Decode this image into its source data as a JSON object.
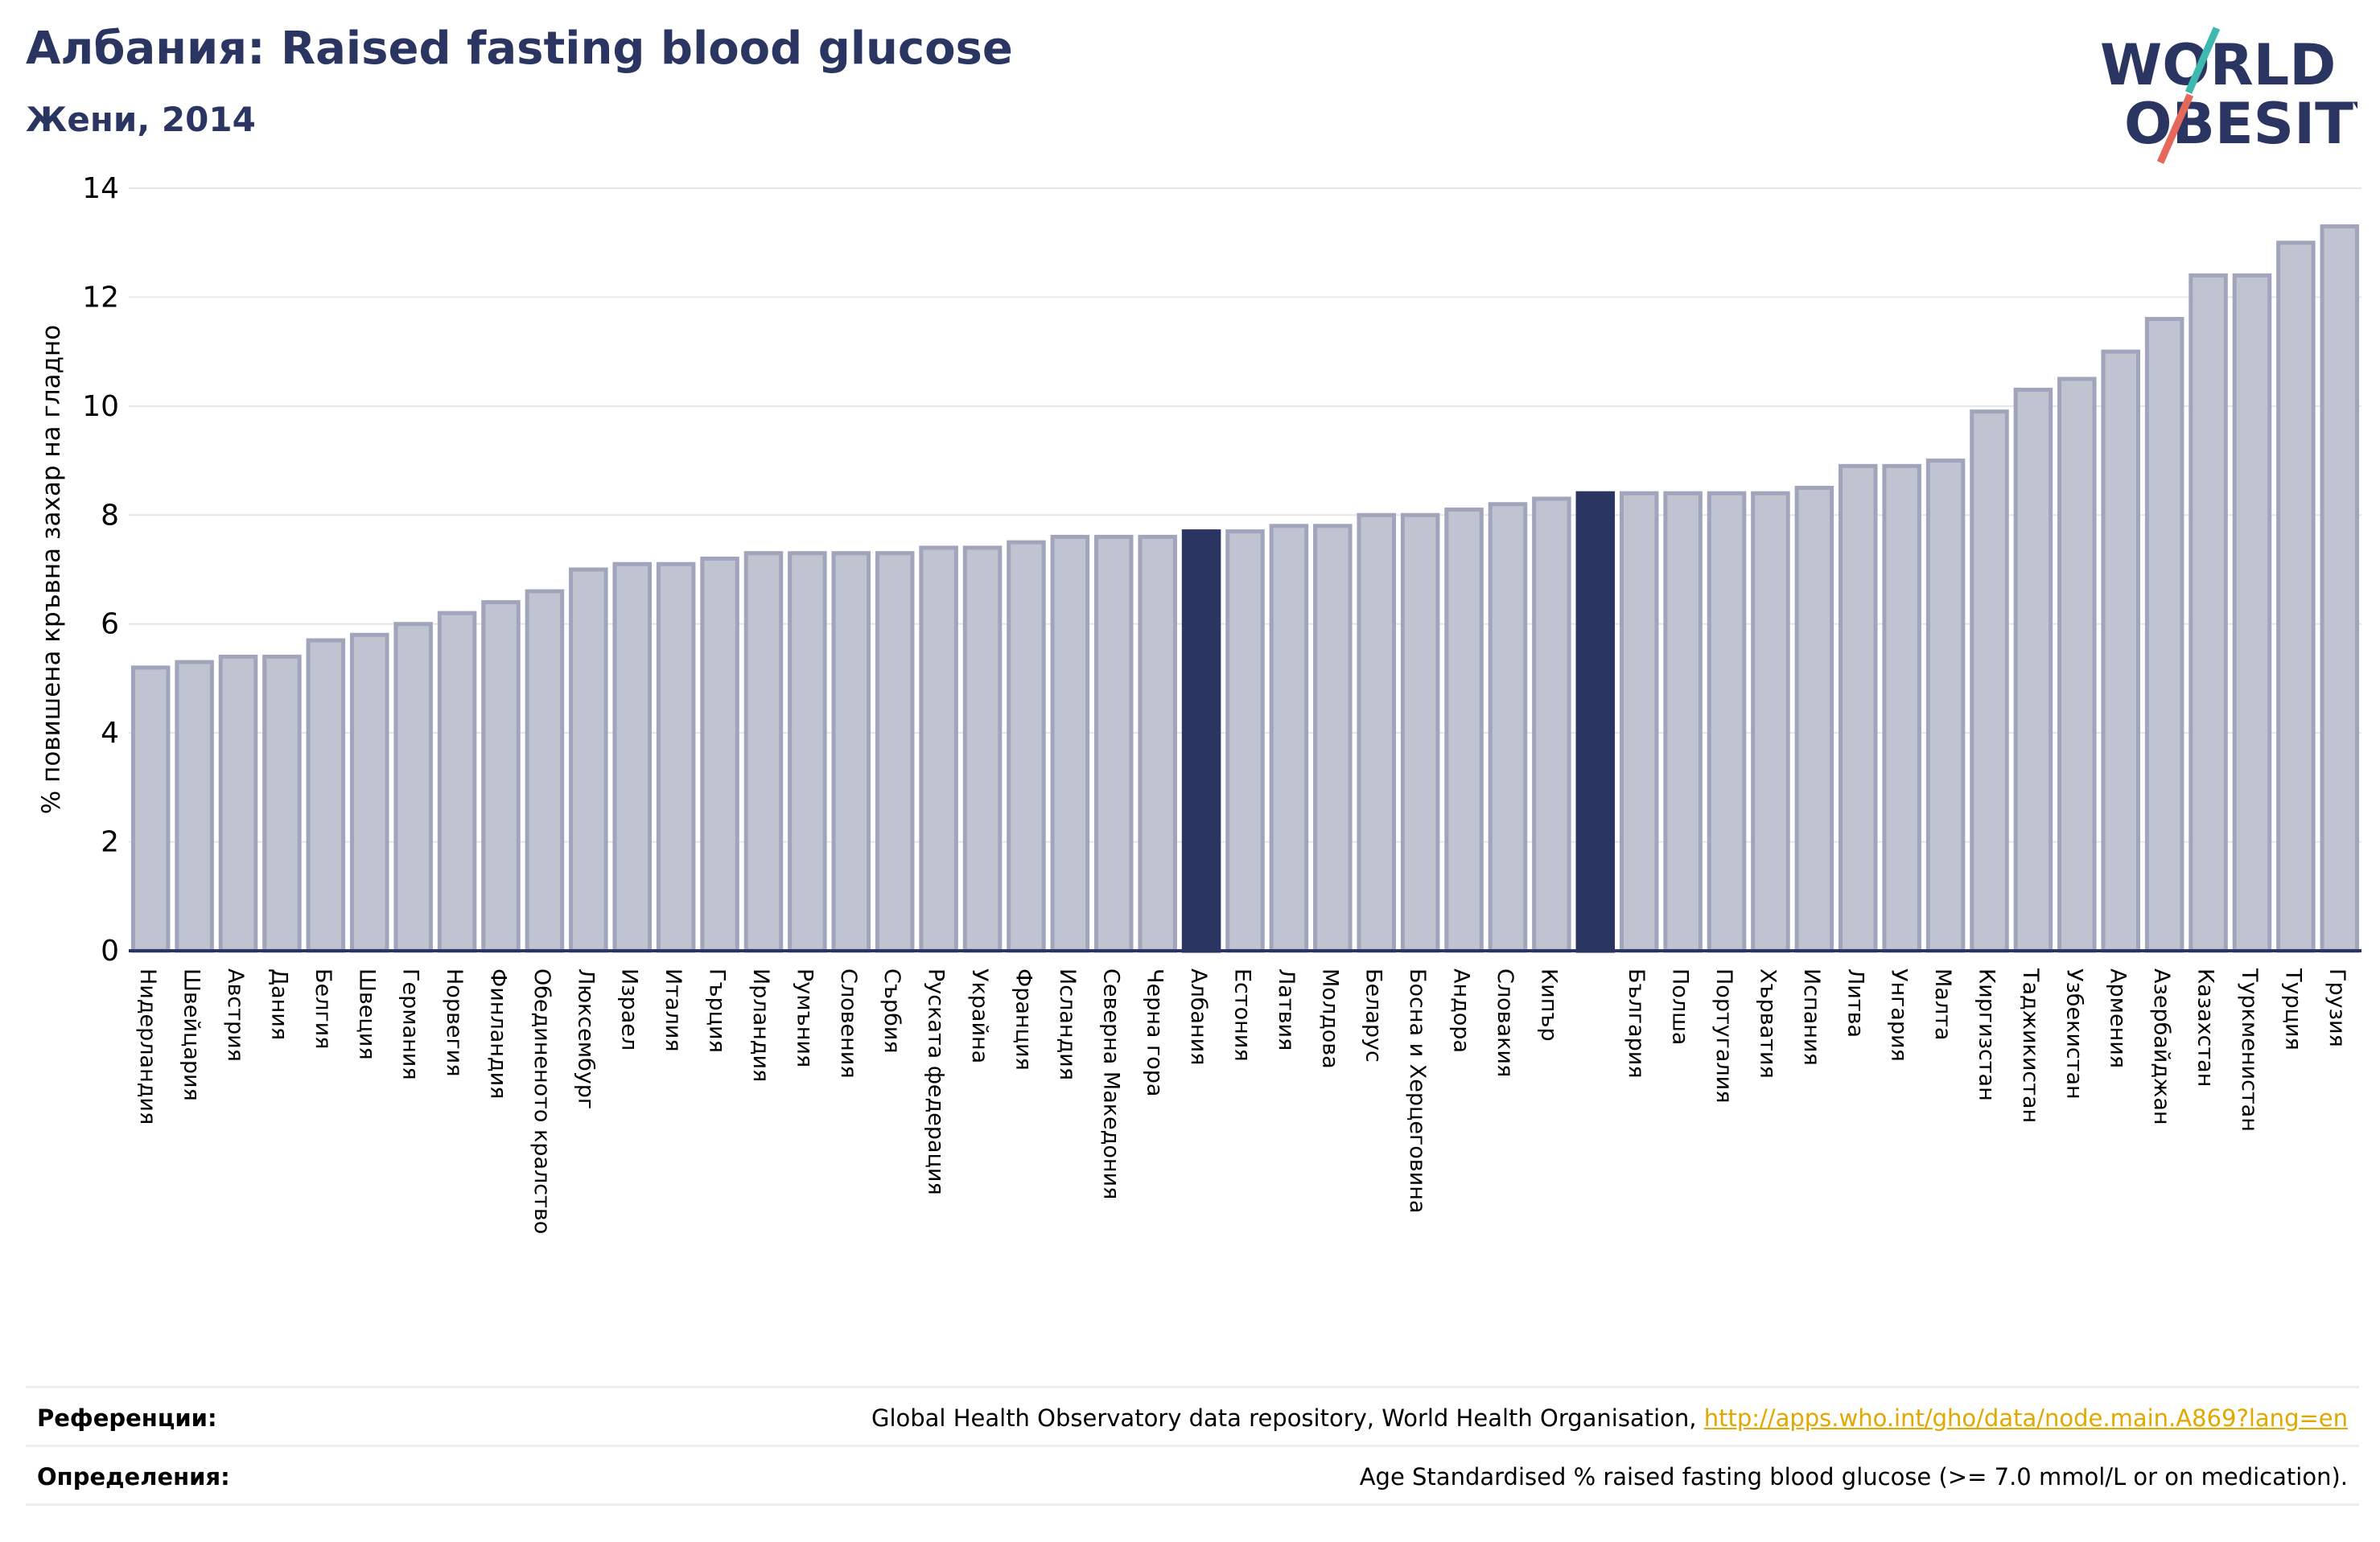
{
  "title": "Албания: Raised fasting blood glucose",
  "subtitle": "Жени, 2014",
  "logo": {
    "line1": "WORLD",
    "line2": "OBESITY"
  },
  "references": {
    "label": "Референции:",
    "text": "Global Health Observatory data repository, World Health Organisation, ",
    "link": "http://apps.who.int/gho/data/node.main.A869?lang=en"
  },
  "definitions": {
    "label": "Определения:",
    "text": "Age Standardised % raised fasting blood glucose (>= 7.0 mmol/L or on medication)."
  },
  "colors": {
    "bar": "#c0c3d0",
    "bar_border": "#a0a5bb",
    "highlight": "#2b3561",
    "title": "#2b3561",
    "logo_teal": "#3fb8af",
    "logo_coral": "#e5695b"
  },
  "chart_data": {
    "type": "bar",
    "ylabel": "% повишена кръвна захар на гладно",
    "ylim": [
      0,
      14
    ],
    "yticks": [
      0,
      2,
      4,
      6,
      8,
      10,
      12,
      14
    ],
    "grid": true,
    "highlighted": [
      "Албания",
      ""
    ],
    "categories": [
      "Нидерландия",
      "Швейцария",
      "Австрия",
      "Дания",
      "Белгия",
      "Швеция",
      "Германия",
      "Норвегия",
      "Финландия",
      "Обединеното кралство",
      "Люксембург",
      "Израел",
      "Италия",
      "Гърция",
      "Ирландия",
      "Румъния",
      "Словения",
      "Сърбия",
      "Руската федерация",
      "Украйна",
      "Франция",
      "Исландия",
      "Северна Македония",
      "Черна гора",
      "Албания",
      "Естония",
      "Латвия",
      "Молдова",
      "Беларус",
      "Босна и Херцеговина",
      "Андора",
      "Словакия",
      "Кипър",
      "",
      "България",
      "Полша",
      "Португалия",
      "Хърватия",
      "Испания",
      "Литва",
      "Унгария",
      "Малта",
      "Киргизстан",
      "Таджикистан",
      "Узбекистан",
      "Армения",
      "Азербайджан",
      "Казахстан",
      "Туркменистан",
      "Турция",
      "Грузия"
    ],
    "values": [
      5.2,
      5.3,
      5.4,
      5.4,
      5.7,
      5.8,
      6.0,
      6.2,
      6.4,
      6.6,
      7.0,
      7.1,
      7.1,
      7.2,
      7.3,
      7.3,
      7.3,
      7.3,
      7.4,
      7.4,
      7.5,
      7.6,
      7.6,
      7.6,
      7.7,
      7.7,
      7.8,
      7.8,
      8.0,
      8.0,
      8.1,
      8.2,
      8.3,
      8.4,
      8.4,
      8.4,
      8.4,
      8.4,
      8.5,
      8.9,
      8.9,
      9.0,
      9.9,
      10.3,
      10.5,
      11.0,
      11.6,
      12.4,
      12.4,
      13.0,
      13.3
    ]
  }
}
